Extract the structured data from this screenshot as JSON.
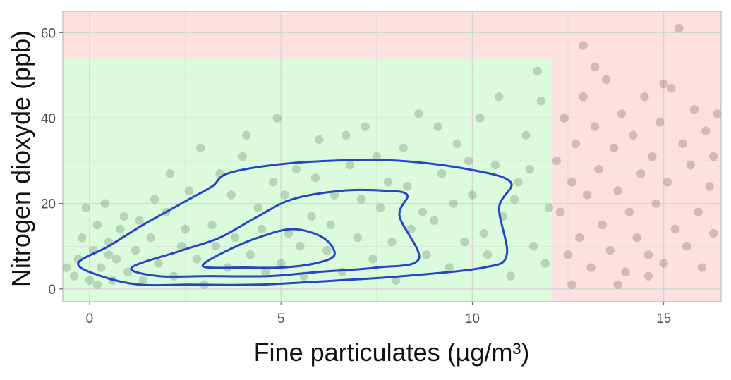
{
  "chart_data": {
    "type": "scatter",
    "title": "",
    "xlabel": "Fine particulates (µg/m³)",
    "ylabel": "Nitrogen dioxyde (ppb)",
    "xlim": [
      -0.7,
      16.5
    ],
    "ylim": [
      -3,
      65
    ],
    "x_ticks": [
      0,
      5,
      10,
      15
    ],
    "y_ticks": [
      0,
      20,
      40,
      60
    ],
    "grid": true,
    "legend": "none",
    "zones": [
      {
        "name": "acceptable",
        "x": [
          -0.7,
          12.1
        ],
        "y": [
          -3,
          54
        ],
        "color": "#dcfbdc"
      },
      {
        "name": "exceed",
        "x": [
          -0.7,
          16.5
        ],
        "y": [
          -3,
          65
        ],
        "color": "#fde1e1"
      }
    ],
    "colors": {
      "point_below": "#1f3d1f",
      "point_above": "#3a1620",
      "contour": "#2544c8",
      "grid": "#d6d6d6",
      "panel_border": "#b0b0b0"
    },
    "series": [
      {
        "values": [
          [
            -0.6,
            5
          ],
          [
            -0.4,
            3
          ],
          [
            -0.3,
            7
          ],
          [
            -0.2,
            12
          ],
          [
            -0.1,
            19
          ],
          [
            0.0,
            2
          ],
          [
            0.1,
            9
          ],
          [
            0.2,
            15
          ],
          [
            0.3,
            5
          ],
          [
            0.4,
            20
          ],
          [
            0.5,
            11
          ],
          [
            0.6,
            2
          ],
          [
            0.7,
            7
          ],
          [
            0.8,
            14
          ],
          [
            0.9,
            17
          ],
          [
            0.2,
            1
          ],
          [
            0.5,
            8
          ]
        ]
      },
      {
        "values": [
          [
            1.0,
            4
          ],
          [
            1.2,
            9
          ],
          [
            1.4,
            2
          ],
          [
            1.6,
            12
          ],
          [
            1.8,
            6
          ],
          [
            2.0,
            18
          ],
          [
            2.2,
            3
          ],
          [
            2.4,
            10
          ],
          [
            2.6,
            23
          ],
          [
            2.8,
            7
          ],
          [
            3.0,
            1
          ],
          [
            3.2,
            15
          ],
          [
            3.4,
            27
          ],
          [
            3.6,
            5
          ],
          [
            3.8,
            12
          ],
          [
            4.0,
            31
          ],
          [
            4.2,
            8
          ],
          [
            4.4,
            19
          ],
          [
            4.6,
            4
          ],
          [
            4.8,
            25
          ],
          [
            1.3,
            16
          ],
          [
            1.7,
            21
          ],
          [
            2.1,
            27
          ],
          [
            2.5,
            14
          ],
          [
            2.9,
            33
          ],
          [
            3.3,
            10
          ],
          [
            3.7,
            22
          ],
          [
            4.1,
            36
          ],
          [
            4.5,
            14
          ],
          [
            4.9,
            40
          ]
        ]
      },
      {
        "values": [
          [
            5.0,
            6
          ],
          [
            5.2,
            13
          ],
          [
            5.4,
            28
          ],
          [
            5.6,
            3
          ],
          [
            5.8,
            17
          ],
          [
            6.0,
            35
          ],
          [
            6.2,
            9
          ],
          [
            6.4,
            22
          ],
          [
            6.6,
            4
          ],
          [
            6.8,
            29
          ],
          [
            7.0,
            12
          ],
          [
            7.2,
            38
          ],
          [
            7.4,
            7
          ],
          [
            7.6,
            19
          ],
          [
            7.8,
            25
          ],
          [
            8.0,
            2
          ],
          [
            8.2,
            33
          ],
          [
            8.4,
            14
          ],
          [
            8.6,
            41
          ],
          [
            8.8,
            8
          ],
          [
            5.1,
            22
          ],
          [
            5.5,
            10
          ],
          [
            5.9,
            26
          ],
          [
            6.3,
            15
          ],
          [
            6.7,
            36
          ],
          [
            7.1,
            21
          ],
          [
            7.5,
            31
          ],
          [
            7.9,
            11
          ],
          [
            8.3,
            24
          ],
          [
            8.7,
            18
          ]
        ]
      },
      {
        "values": [
          [
            9.0,
            16
          ],
          [
            9.2,
            27
          ],
          [
            9.4,
            5
          ],
          [
            9.6,
            34
          ],
          [
            9.8,
            11
          ],
          [
            10.0,
            22
          ],
          [
            10.2,
            40
          ],
          [
            10.4,
            8
          ],
          [
            10.6,
            29
          ],
          [
            10.8,
            17
          ],
          [
            11.0,
            3
          ],
          [
            11.2,
            25
          ],
          [
            11.4,
            36
          ],
          [
            11.6,
            10
          ],
          [
            11.8,
            44
          ],
          [
            12.0,
            19
          ],
          [
            9.1,
            38
          ],
          [
            9.5,
            20
          ],
          [
            9.9,
            30
          ],
          [
            10.3,
            13
          ],
          [
            10.7,
            45
          ],
          [
            11.1,
            21
          ],
          [
            11.5,
            28
          ],
          [
            11.7,
            51
          ],
          [
            11.9,
            6
          ]
        ]
      },
      {
        "values": [
          [
            12.2,
            30
          ],
          [
            12.3,
            18
          ],
          [
            12.4,
            40
          ],
          [
            12.5,
            8
          ],
          [
            12.6,
            25
          ],
          [
            12.7,
            34
          ],
          [
            12.8,
            12
          ],
          [
            12.9,
            45
          ],
          [
            13.0,
            22
          ],
          [
            13.1,
            5
          ],
          [
            13.2,
            38
          ],
          [
            13.3,
            28
          ],
          [
            13.4,
            15
          ],
          [
            13.5,
            49
          ],
          [
            13.6,
            9
          ],
          [
            13.7,
            33
          ],
          [
            13.8,
            23
          ],
          [
            13.9,
            41
          ],
          [
            14.0,
            4
          ],
          [
            14.1,
            18
          ],
          [
            14.2,
            36
          ],
          [
            14.3,
            12
          ],
          [
            14.4,
            27
          ],
          [
            14.5,
            45
          ],
          [
            14.6,
            8
          ],
          [
            14.7,
            31
          ],
          [
            14.8,
            20
          ],
          [
            14.9,
            39
          ],
          [
            15.0,
            6
          ],
          [
            15.1,
            25
          ],
          [
            15.2,
            47
          ],
          [
            15.3,
            14
          ],
          [
            15.4,
            61
          ],
          [
            15.5,
            34
          ],
          [
            15.6,
            10
          ],
          [
            15.7,
            29
          ],
          [
            15.8,
            42
          ],
          [
            15.9,
            18
          ],
          [
            16.0,
            5
          ],
          [
            16.1,
            37
          ],
          [
            16.2,
            24
          ],
          [
            16.3,
            13
          ],
          [
            16.4,
            41
          ],
          [
            12.9,
            57
          ],
          [
            13.2,
            52
          ],
          [
            15.0,
            48
          ],
          [
            16.3,
            31
          ],
          [
            14.6,
            3
          ],
          [
            12.6,
            1
          ],
          [
            13.8,
            1
          ]
        ]
      }
    ],
    "contours": [
      {
        "level": "outer",
        "x": [
          -0.3,
          0.5,
          1.4,
          2.6,
          3.2,
          3.6,
          4.8,
          6.3,
          8.1,
          9.9,
          11.0,
          10.7,
          10.9,
          10.3,
          8.2,
          6.5,
          4.4,
          2.6,
          1.3,
          0.3
        ],
        "y": [
          6,
          10,
          15,
          21,
          24,
          27,
          29,
          30,
          30,
          28,
          25,
          19,
          8,
          5,
          3,
          2,
          1,
          1,
          1,
          3
        ]
      },
      {
        "level": "middle",
        "x": [
          1.1,
          2.4,
          3.4,
          4.4,
          5.3,
          6.6,
          7.7,
          8.3,
          8.1,
          8.6,
          7.5,
          6.0,
          4.7,
          3.1,
          1.8
        ],
        "y": [
          5,
          9,
          12,
          17,
          21,
          23,
          23,
          22,
          17,
          7,
          5,
          4,
          3,
          3,
          3
        ]
      },
      {
        "level": "inner",
        "x": [
          3.0,
          3.6,
          4.4,
          5.3,
          6.1,
          6.4,
          5.9,
          5.0,
          4.0,
          3.1
        ],
        "y": [
          6,
          9,
          12,
          14,
          12,
          8,
          6,
          5,
          5,
          5
        ]
      }
    ]
  }
}
